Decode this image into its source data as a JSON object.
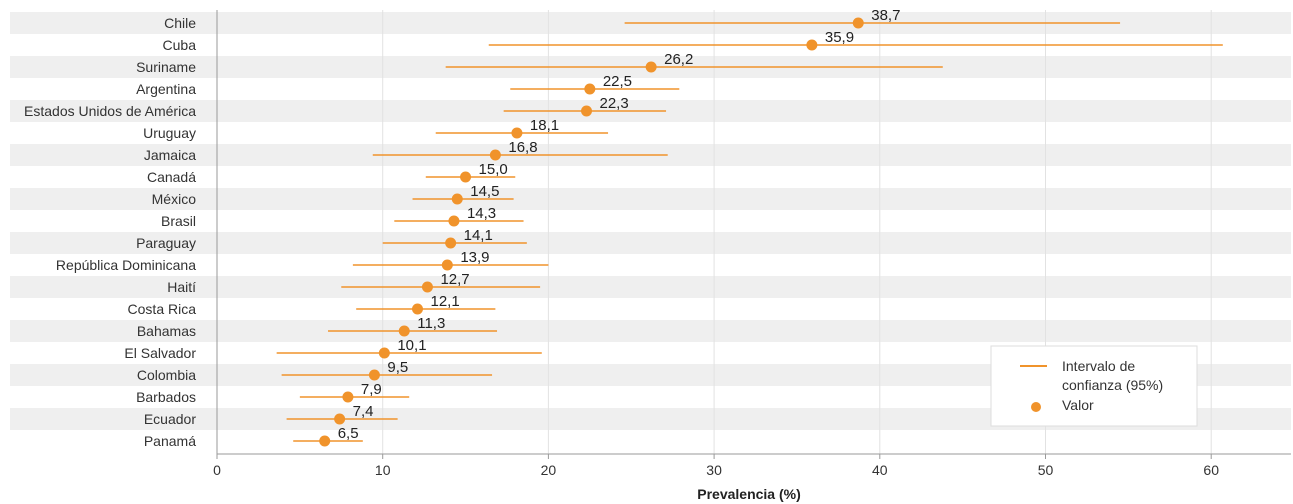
{
  "chart_data": {
    "type": "scatter",
    "subtype": "horizontal-dot-with-error-bars",
    "title": "",
    "xlabel": "Prevalencia (%)",
    "ylabel": "",
    "xlim": [
      0,
      65
    ],
    "xticks": [
      0,
      10,
      20,
      30,
      40,
      50,
      60
    ],
    "grid": "vertical",
    "row_striping": true,
    "legend_position": "bottom-right",
    "colors": {
      "accent": "#F0932B",
      "band": "#EFEFEF",
      "grid": "#E2E2E2"
    },
    "legend": [
      {
        "label": "Intervalo de confianza (95%)",
        "marker": "line"
      },
      {
        "label": "Valor",
        "marker": "dot"
      }
    ],
    "categories": [
      "Chile",
      "Cuba",
      "Suriname",
      "Argentina",
      "Estados Unidos de América",
      "Uruguay",
      "Jamaica",
      "Canadá",
      "México",
      "Brasil",
      "Paraguay",
      "República Dominicana",
      "Haití",
      "Costa Rica",
      "Bahamas",
      "El Salvador",
      "Colombia",
      "Barbados",
      "Ecuador",
      "Panamá"
    ],
    "value_labels": [
      "38,7",
      "35,9",
      "26,2",
      "22,5",
      "22,3",
      "18,1",
      "16,8",
      "15,0",
      "14,5",
      "14,3",
      "14,1",
      "13,9",
      "12,7",
      "12,1",
      "11,3",
      "10,1",
      "9,5",
      "7,9",
      "7,4",
      "6,5"
    ],
    "series": [
      {
        "name": "Valor",
        "values": [
          38.7,
          35.9,
          26.2,
          22.5,
          22.3,
          18.1,
          16.8,
          15.0,
          14.5,
          14.3,
          14.1,
          13.9,
          12.7,
          12.1,
          11.3,
          10.1,
          9.5,
          7.9,
          7.4,
          6.5
        ]
      },
      {
        "name": "Intervalo de confianza (95%)",
        "lower": [
          24.6,
          16.4,
          13.8,
          17.7,
          17.3,
          13.2,
          9.4,
          12.6,
          11.8,
          10.7,
          10.0,
          8.2,
          7.5,
          8.4,
          6.7,
          3.6,
          3.9,
          5.0,
          4.2,
          4.6
        ],
        "upper": [
          54.5,
          60.7,
          43.8,
          27.9,
          27.1,
          23.6,
          27.2,
          18.0,
          17.9,
          18.5,
          18.7,
          20.0,
          19.5,
          16.8,
          16.9,
          19.6,
          16.6,
          11.6,
          10.9,
          8.8
        ]
      }
    ]
  }
}
